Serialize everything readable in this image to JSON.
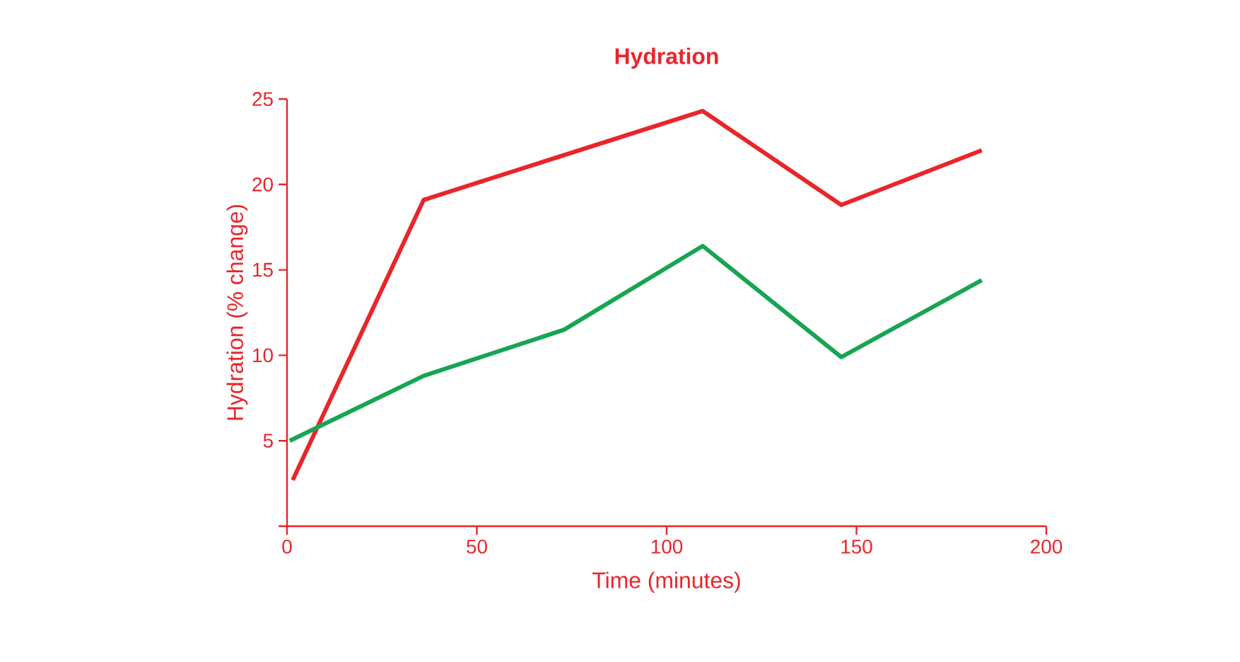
{
  "chart_data": {
    "type": "line",
    "title": "Hydration",
    "xlabel": "Time (minutes)",
    "ylabel": "Hydration (% change)",
    "xlim": [
      0,
      200
    ],
    "ylim": [
      0,
      25
    ],
    "xticks": [
      0,
      50,
      100,
      150,
      200
    ],
    "yticks": [
      {
        "value": 0,
        "label": null
      },
      5,
      10,
      15,
      20,
      25
    ],
    "grid": false,
    "marker": "none",
    "line_style": "solid",
    "series": [
      {
        "color": "#e8262a",
        "x": [
          1.5,
          36,
          109.5,
          146,
          183
        ],
        "values": [
          2.7,
          19.1,
          24.3,
          18.8,
          22.0
        ]
      },
      {
        "color": "#17a552",
        "x": [
          0.7,
          36,
          73,
          109.5,
          146,
          183
        ],
        "values": [
          5.0,
          8.8,
          11.5,
          16.4,
          9.9,
          14.4
        ]
      }
    ]
  }
}
